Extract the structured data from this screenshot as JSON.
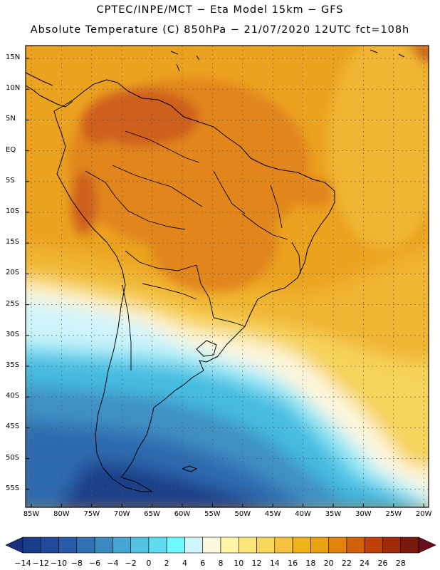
{
  "title_line1": "CPTEC/INPE/MCT −  Eta Model 15km − GFS",
  "title_line2": "Absolute Temperature (C) 850hPa − 21/07/2020 12UTC fct=108h",
  "lat_labels": [
    "15N",
    "10N",
    "5N",
    "EQ",
    "5S",
    "10S",
    "15S",
    "20S",
    "25S",
    "30S",
    "35S",
    "40S",
    "45S",
    "50S",
    "55S"
  ],
  "lon_labels": [
    "85W",
    "80W",
    "75W",
    "70W",
    "65W",
    "60W",
    "55W",
    "50W",
    "45W",
    "40W",
    "35W",
    "30W",
    "25W",
    "20W"
  ],
  "colorbar": {
    "labels": [
      "−14",
      "−12",
      "−10",
      "−8",
      "−6",
      "−4",
      "−2",
      "0",
      "2",
      "4",
      "6",
      "8",
      "10",
      "12",
      "14",
      "16",
      "18",
      "20",
      "22",
      "24",
      "26",
      "28"
    ],
    "colors": [
      "#1a3d8c",
      "#22489a",
      "#2a5aa8",
      "#3272b4",
      "#3a8ac0",
      "#44a6d2",
      "#52c2e0",
      "#5fdcef",
      "#6ef8ff",
      "#d0f5fb",
      "#fdf8df",
      "#fff7a8",
      "#fde77a",
      "#f9d75c",
      "#f4c440",
      "#efb21a",
      "#eaa212",
      "#e4820e",
      "#d5600a",
      "#bf4008",
      "#a02a0a",
      "#7a1a0c"
    ],
    "under_color": "#1d2f80",
    "over_color": "#6a0c20"
  },
  "field_colors": {
    "deep_blue": "#1d3f8a",
    "mid_blue": "#2f6bb0",
    "steel_blue": "#3f90c4",
    "cyan": "#44bce0",
    "light_cyan": "#8de6f6",
    "pale_blue": "#cff4fb",
    "cream": "#fdf6dc",
    "light_yellow": "#fbe78a",
    "yellow": "#f6d35a",
    "gold": "#f0b530",
    "orange": "#eba21f",
    "dark_orange": "#e2861c",
    "red_orange": "#cf5e1a"
  }
}
